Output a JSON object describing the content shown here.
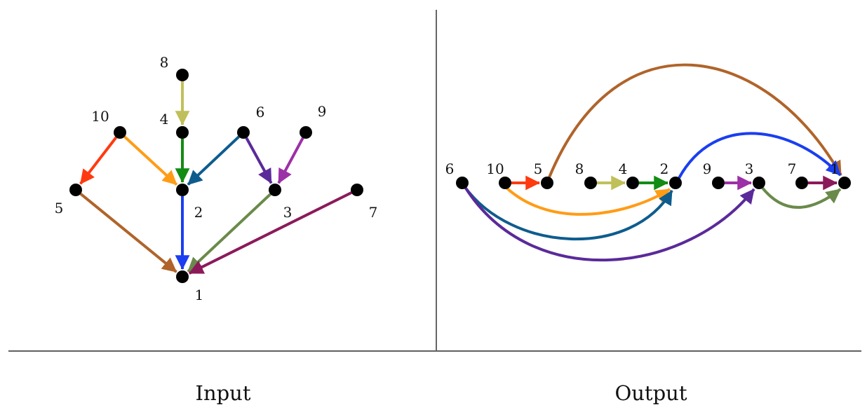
{
  "captions": {
    "left": "Input",
    "right": "Output"
  },
  "nodes": [
    {
      "id": "1",
      "label": "1"
    },
    {
      "id": "2",
      "label": "2"
    },
    {
      "id": "3",
      "label": "3"
    },
    {
      "id": "4",
      "label": "4"
    },
    {
      "id": "5",
      "label": "5"
    },
    {
      "id": "6",
      "label": "6"
    },
    {
      "id": "7",
      "label": "7"
    },
    {
      "id": "8",
      "label": "8"
    },
    {
      "id": "9",
      "label": "9"
    },
    {
      "id": "10",
      "label": "10"
    }
  ],
  "edges": [
    {
      "from": "8",
      "to": "4",
      "color": "#c0c05a"
    },
    {
      "from": "4",
      "to": "2",
      "color": "#128c12"
    },
    {
      "from": "10",
      "to": "5",
      "color": "#ff3a10"
    },
    {
      "from": "10",
      "to": "2",
      "color": "#ff9c16"
    },
    {
      "from": "6",
      "to": "2",
      "color": "#0e5c8e"
    },
    {
      "from": "6",
      "to": "3",
      "color": "#5a2a9a"
    },
    {
      "from": "9",
      "to": "3",
      "color": "#9c30a6"
    },
    {
      "from": "5",
      "to": "1",
      "color": "#b0642a"
    },
    {
      "from": "2",
      "to": "1",
      "color": "#1a3ef0"
    },
    {
      "from": "3",
      "to": "1",
      "color": "#6a8a4a"
    },
    {
      "from": "7",
      "to": "1",
      "color": "#8c1a5a"
    }
  ],
  "output_sequence": [
    "6",
    "10",
    "5",
    "8",
    "4",
    "2",
    "9",
    "3",
    "7",
    "1"
  ]
}
